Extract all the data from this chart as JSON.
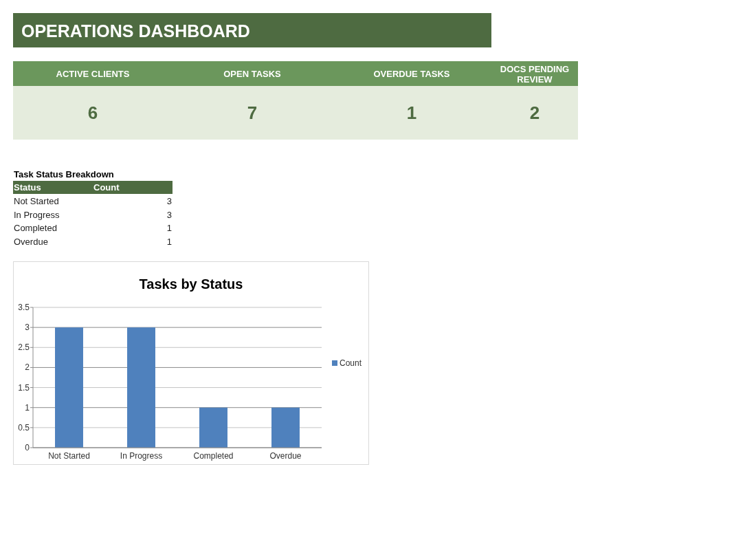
{
  "chart_data": [
    {
      "type": "other",
      "title": "OPERATIONS DASHBOARD",
      "categories": [
        "ACTIVE CLIENTS",
        "OPEN TASKS",
        "OVERDUE TASKS",
        "DOCS PENDING REVIEW"
      ],
      "values": [
        6,
        7,
        1,
        2
      ],
      "data_labels": true
    },
    {
      "type": "other",
      "title": "Task Status Breakdown",
      "xlabel": "Status",
      "ylabel": "Count",
      "categories": [
        "Not Started",
        "In Progress",
        "Completed",
        "Overdue"
      ],
      "values": [
        3,
        3,
        1,
        1
      ],
      "data_labels": true
    },
    {
      "type": "bar",
      "title": "Tasks by Status",
      "categories": [
        "Not Started",
        "In Progress",
        "Completed",
        "Overdue"
      ],
      "series": [
        {
          "name": "Count",
          "color": "#4f81bd",
          "values": [
            3,
            3,
            1,
            1
          ]
        }
      ],
      "ylim": [
        0,
        3.5
      ],
      "yticks": [
        0,
        0.5,
        1,
        1.5,
        2,
        2.5,
        3,
        3.5
      ],
      "grid": "y",
      "legend": "right"
    }
  ]
}
